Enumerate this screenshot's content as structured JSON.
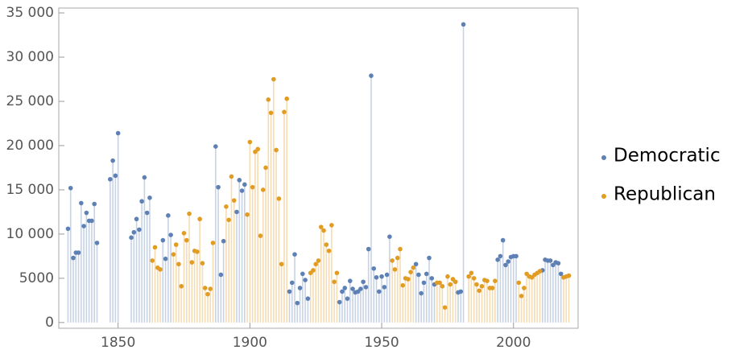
{
  "chart_data": {
    "type": "stem",
    "xlim": [
      1827.5,
      2024.5
    ],
    "ylim": [
      -650,
      35550
    ],
    "xticks": [
      1850,
      1900,
      1950,
      2000
    ],
    "yticks": [
      0,
      5000,
      {
        "value": 10000,
        "label": "10 000"
      },
      {
        "value": 15000,
        "label": "15 000"
      },
      {
        "value": 20000,
        "label": "20 000"
      },
      {
        "value": 25000,
        "label": "25 000"
      },
      {
        "value": 30000,
        "label": "30 000"
      },
      {
        "value": 35000,
        "label": "35 000"
      }
    ],
    "legend": "right",
    "series": [
      {
        "name": "Democratic",
        "color": "#5e81b5",
        "x": [
          1831,
          1832,
          1833,
          1834,
          1835,
          1836,
          1837,
          1838,
          1839,
          1840,
          1841,
          1842,
          1847,
          1848,
          1849,
          1850,
          1855,
          1856,
          1857,
          1858,
          1859,
          1860,
          1861,
          1862,
          1867,
          1868,
          1869,
          1870,
          1887,
          1888,
          1889,
          1890,
          1895,
          1896,
          1897,
          1898,
          1915,
          1916,
          1917,
          1918,
          1919,
          1920,
          1921,
          1922,
          1934,
          1935,
          1936,
          1937,
          1938,
          1939,
          1940,
          1941,
          1942,
          1943,
          1944,
          1945,
          1946,
          1947,
          1948,
          1949,
          1950,
          1951,
          1952,
          1953,
          1963,
          1964,
          1965,
          1966,
          1967,
          1968,
          1969,
          1970,
          1979,
          1980,
          1981,
          1994,
          1995,
          1996,
          1997,
          1998,
          1999,
          2000,
          2001,
          2011,
          2012,
          2013,
          2014,
          2015,
          2016,
          2017,
          2018
        ],
        "values": [
          10600,
          15200,
          7300,
          7900,
          7900,
          13500,
          10900,
          12400,
          11500,
          11500,
          13400,
          9000,
          16200,
          18300,
          16600,
          21400,
          9600,
          10200,
          11700,
          10500,
          13700,
          16400,
          12400,
          14100,
          9300,
          7200,
          12100,
          9900,
          19900,
          15300,
          5400,
          9200,
          12500,
          16100,
          14900,
          15600,
          3500,
          4500,
          7700,
          2200,
          3900,
          5500,
          4800,
          2700,
          2300,
          3500,
          3900,
          2700,
          4700,
          3800,
          3400,
          3500,
          3800,
          4600,
          4000,
          8300,
          27900,
          6100,
          5100,
          3500,
          5200,
          4000,
          5400,
          9700,
          6600,
          5400,
          3300,
          4500,
          5500,
          7300,
          5000,
          4300,
          3400,
          3500,
          33700,
          7100,
          7500,
          9300,
          6500,
          6900,
          7400,
          7500,
          7500,
          5900,
          7100,
          7000,
          7000,
          6500,
          6800,
          6700,
          5500
        ]
      },
      {
        "name": "Republican",
        "color": "#e19c24",
        "x": [
          1863,
          1864,
          1865,
          1866,
          1871,
          1872,
          1873,
          1874,
          1875,
          1876,
          1877,
          1878,
          1879,
          1880,
          1881,
          1882,
          1883,
          1884,
          1885,
          1886,
          1891,
          1892,
          1893,
          1894,
          1899,
          1900,
          1901,
          1902,
          1903,
          1904,
          1905,
          1906,
          1907,
          1908,
          1909,
          1910,
          1911,
          1912,
          1913,
          1914,
          1923,
          1924,
          1925,
          1926,
          1927,
          1928,
          1929,
          1930,
          1931,
          1932,
          1933,
          1954,
          1955,
          1956,
          1957,
          1958,
          1959,
          1960,
          1961,
          1962,
          1971,
          1972,
          1973,
          1974,
          1975,
          1976,
          1977,
          1978,
          1983,
          1984,
          1985,
          1986,
          1987,
          1988,
          1989,
          1990,
          1991,
          1992,
          1993,
          2002,
          2003,
          2004,
          2005,
          2006,
          2007,
          2008,
          2009,
          2010,
          2019,
          2020,
          2021
        ],
        "values": [
          7000,
          8500,
          6200,
          6000,
          7700,
          8800,
          6600,
          4100,
          10100,
          9300,
          12300,
          6800,
          8100,
          8000,
          11700,
          6700,
          3900,
          3200,
          3800,
          9000,
          13100,
          11600,
          16500,
          13800,
          12200,
          20400,
          15300,
          19300,
          19600,
          9800,
          15000,
          17500,
          25200,
          23700,
          27500,
          19500,
          14000,
          6600,
          23800,
          25300,
          5600,
          5900,
          6600,
          7000,
          10800,
          10400,
          8800,
          8100,
          11000,
          4600,
          5600,
          7000,
          6000,
          7300,
          8300,
          4200,
          5000,
          4900,
          5700,
          6200,
          4500,
          4500,
          4100,
          1700,
          5200,
          4300,
          4900,
          4600,
          5200,
          5600,
          5000,
          4300,
          3600,
          4100,
          4800,
          4700,
          3900,
          3900,
          4700,
          4500,
          3000,
          3900,
          5500,
          5200,
          5100,
          5400,
          5600,
          5800,
          5100,
          5200,
          5300
        ]
      }
    ]
  }
}
